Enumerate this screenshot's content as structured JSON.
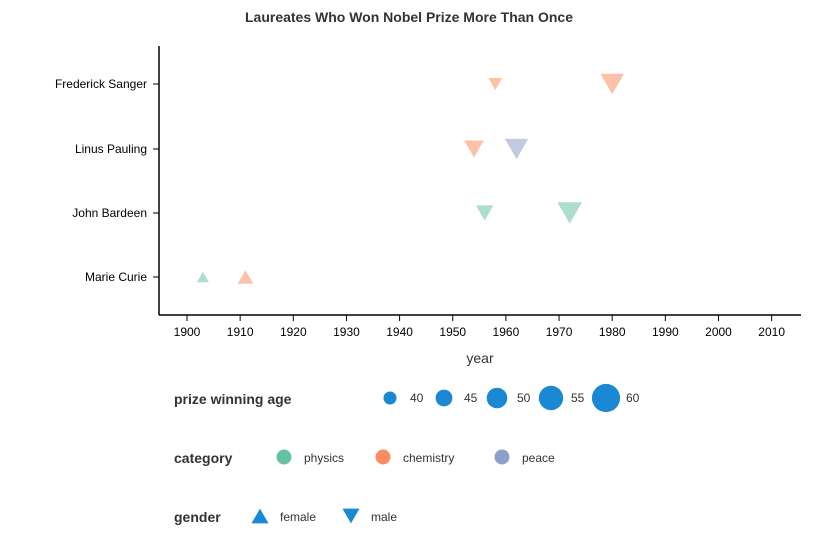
{
  "chart_data": {
    "type": "scatter",
    "title": "Laureates Who Won Nobel Prize More Than Once",
    "xlabel": "year",
    "ylabel": "",
    "xlim": [
      1895,
      2016
    ],
    "x_ticks": [
      1900,
      1910,
      1920,
      1930,
      1940,
      1950,
      1960,
      1970,
      1980,
      1990,
      2000,
      2010
    ],
    "categories": [
      "Frederick Sanger",
      "Linus Pauling",
      "John Bardeen",
      "Marie Curie"
    ],
    "points": [
      {
        "name": "Frederick Sanger",
        "year": 1958,
        "category": "chemistry",
        "gender": "male",
        "age": 40
      },
      {
        "name": "Frederick Sanger",
        "year": 1980,
        "category": "chemistry",
        "gender": "male",
        "age": 62
      },
      {
        "name": "Linus Pauling",
        "year": 1954,
        "category": "chemistry",
        "gender": "male",
        "age": 53
      },
      {
        "name": "Linus Pauling",
        "year": 1962,
        "category": "peace",
        "gender": "male",
        "age": 61
      },
      {
        "name": "John Bardeen",
        "year": 1956,
        "category": "physics",
        "gender": "male",
        "age": 48
      },
      {
        "name": "John Bardeen",
        "year": 1972,
        "category": "physics",
        "gender": "male",
        "age": 64
      },
      {
        "name": "Marie Curie",
        "year": 1903,
        "category": "physics",
        "gender": "female",
        "age": 36
      },
      {
        "name": "Marie Curie",
        "year": 1911,
        "category": "chemistry",
        "gender": "female",
        "age": 44
      }
    ],
    "colors": {
      "physics": "#66c2a5",
      "chemistry": "#fc8d62",
      "peace": "#8da0cb",
      "legend_shape": "#1a88d3"
    },
    "grid": false
  },
  "legend": {
    "age": {
      "title": "prize winning age",
      "values": [
        40,
        45,
        50,
        55,
        60
      ],
      "labels": [
        "40",
        "45",
        "50",
        "55",
        "60"
      ]
    },
    "category": {
      "title": "category",
      "items": [
        "physics",
        "chemistry",
        "peace"
      ]
    },
    "gender": {
      "title": "gender",
      "items": [
        "female",
        "male"
      ]
    }
  }
}
